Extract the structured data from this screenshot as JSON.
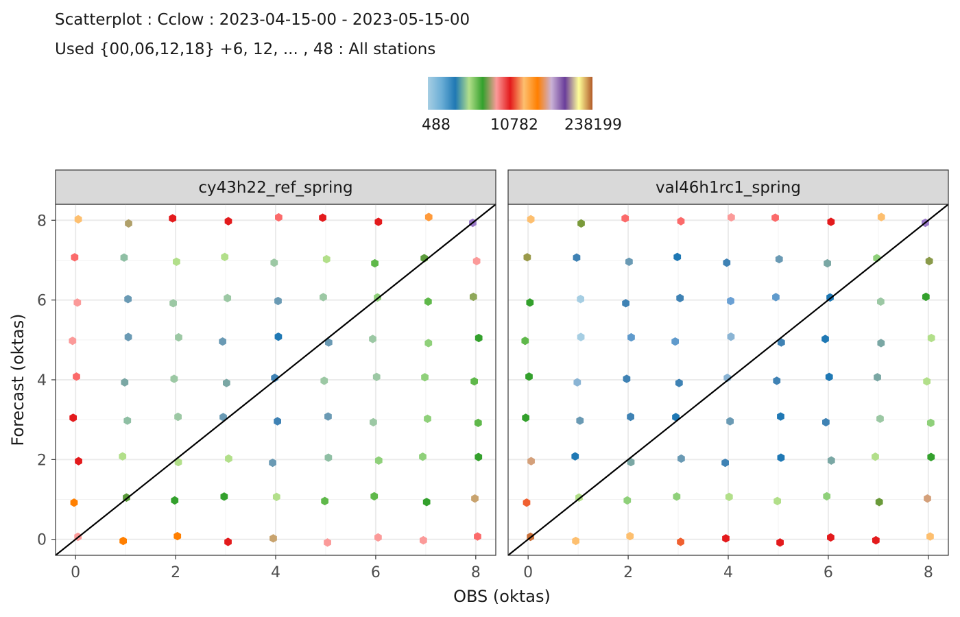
{
  "title": {
    "line1": "Scatterplot : Cclow : 2023-04-15-00 - 2023-05-15-00",
    "line2": "Used {00,06,12,18} +6, 12, ... , 48 : All stations"
  },
  "legend": {
    "labels": [
      "488",
      "10782",
      "238199"
    ],
    "stops": [
      "#a6cee3",
      "#6baed6",
      "#1f78b4",
      "#b2df8a",
      "#33a02c",
      "#fb9a99",
      "#e31a1c",
      "#fdbf6f",
      "#ff7f00",
      "#cab2d6",
      "#6a3d9a",
      "#ffff99",
      "#b15928"
    ]
  },
  "chart_data": {
    "type": "scatter",
    "xlabel": "OBS (oktas)",
    "ylabel": "Forecast (oktas)",
    "xlim": [
      -0.4,
      8.4
    ],
    "ylim": [
      -0.4,
      8.4
    ],
    "xticks": [
      0,
      2,
      4,
      6,
      8
    ],
    "yticks": [
      0,
      2,
      4,
      6,
      8
    ],
    "grid": true,
    "reference_line": "y = x",
    "panels": [
      {
        "name": "cy43h22_ref_spring",
        "rows": [
          [
            "#fb9a99",
            "#ff7f00",
            "#ff7f00",
            "#e31a1c",
            "#c8a36e",
            "#fb9a99",
            "#fb9a99",
            "#fb9a99",
            "#fb6a6a"
          ],
          [
            "#ff7f00",
            "#5a9a3a",
            "#33a02c",
            "#33a02c",
            "#b2df8a",
            "#5fb84a",
            "#5fb84a",
            "#33a02c",
            "#c8a36e"
          ],
          [
            "#e31a1c",
            "#b2df8a",
            "#b2df8a",
            "#b2df8a",
            "#6a9ab4",
            "#8fbfa4",
            "#8fd07a",
            "#8fd07a",
            "#33a02c"
          ],
          [
            "#e31a1c",
            "#8fbfa4",
            "#9cc8a4",
            "#6a9ab4",
            "#3f82b4",
            "#6a9ab4",
            "#9cc8a4",
            "#8fd07a",
            "#5fb84a"
          ],
          [
            "#fb6a6a",
            "#7aa7a4",
            "#9cc8a4",
            "#7aa7a4",
            "#3f82b4",
            "#9cc8a4",
            "#9cc8a4",
            "#8fd07a",
            "#5fb84a"
          ],
          [
            "#fb9a99",
            "#6a9ab4",
            "#9cc8a4",
            "#6a9ab4",
            "#1f78b4",
            "#6a9ab4",
            "#9cc8a4",
            "#8fd07a",
            "#33a02c"
          ],
          [
            "#fb9a99",
            "#6a9ab4",
            "#9cc8a4",
            "#9cc8a4",
            "#6a9ab4",
            "#9cc8a4",
            "#8fd07a",
            "#5fb84a",
            "#8fa85a"
          ],
          [
            "#fb6a6a",
            "#8fbfa4",
            "#b2df8a",
            "#b2df8a",
            "#9cc8a4",
            "#b2df8a",
            "#5fb84a",
            "#5a9a3a",
            "#fb9a99"
          ],
          [
            "#fdbf6f",
            "#b0a06a",
            "#e31a1c",
            "#e31a1c",
            "#fb6a6a",
            "#e31a1c",
            "#e31a1c",
            "#ff9a3a",
            "#9a7ac8"
          ]
        ]
      },
      {
        "name": "val46h1rc1_spring",
        "rows": [
          [
            "#c8703a",
            "#fdbf6f",
            "#fdbf6f",
            "#f06030",
            "#e31a1c",
            "#e31a1c",
            "#e31a1c",
            "#e31a1c",
            "#fdbf6f"
          ],
          [
            "#f06030",
            "#b2df8a",
            "#8fd07a",
            "#8fd07a",
            "#b2df8a",
            "#b2df8a",
            "#8fd07a",
            "#6a9a3a",
            "#d4a07a"
          ],
          [
            "#d4a07a",
            "#1f78b4",
            "#7aa7a4",
            "#6a9ab4",
            "#3f82b4",
            "#1f78b4",
            "#7aa7a4",
            "#b2df8a",
            "#33a02c"
          ],
          [
            "#33a02c",
            "#6a9ab4",
            "#3f82b4",
            "#1f78b4",
            "#6a9ab4",
            "#1f78b4",
            "#3f82b4",
            "#9cc8a4",
            "#8fd07a"
          ],
          [
            "#33a02c",
            "#8ab4d4",
            "#3f82b4",
            "#3f82b4",
            "#8ab4d4",
            "#3f82b4",
            "#1f78b4",
            "#7aa7a4",
            "#b2df8a"
          ],
          [
            "#5fb84a",
            "#a6cee3",
            "#5f9acc",
            "#5f9acc",
            "#8ab4d4",
            "#3f82b4",
            "#1f78b4",
            "#7aa7a4",
            "#b2df8a"
          ],
          [
            "#33a02c",
            "#a6cee3",
            "#3f82b4",
            "#3f82b4",
            "#6aa0d4",
            "#5f9acc",
            "#1f78b4",
            "#9cc8a4",
            "#33a02c"
          ],
          [
            "#9a9a4a",
            "#3f82b4",
            "#6a9ab4",
            "#1f78b4",
            "#3f82b4",
            "#6a9ab4",
            "#7aa7a4",
            "#8fd07a",
            "#8a9a4a"
          ],
          [
            "#fdbf6f",
            "#7a9a3a",
            "#fb6a6a",
            "#fb6a6a",
            "#fb9a99",
            "#fb6a6a",
            "#e31a1c",
            "#fdbf6f",
            "#9a7ac8"
          ]
        ]
      }
    ]
  }
}
